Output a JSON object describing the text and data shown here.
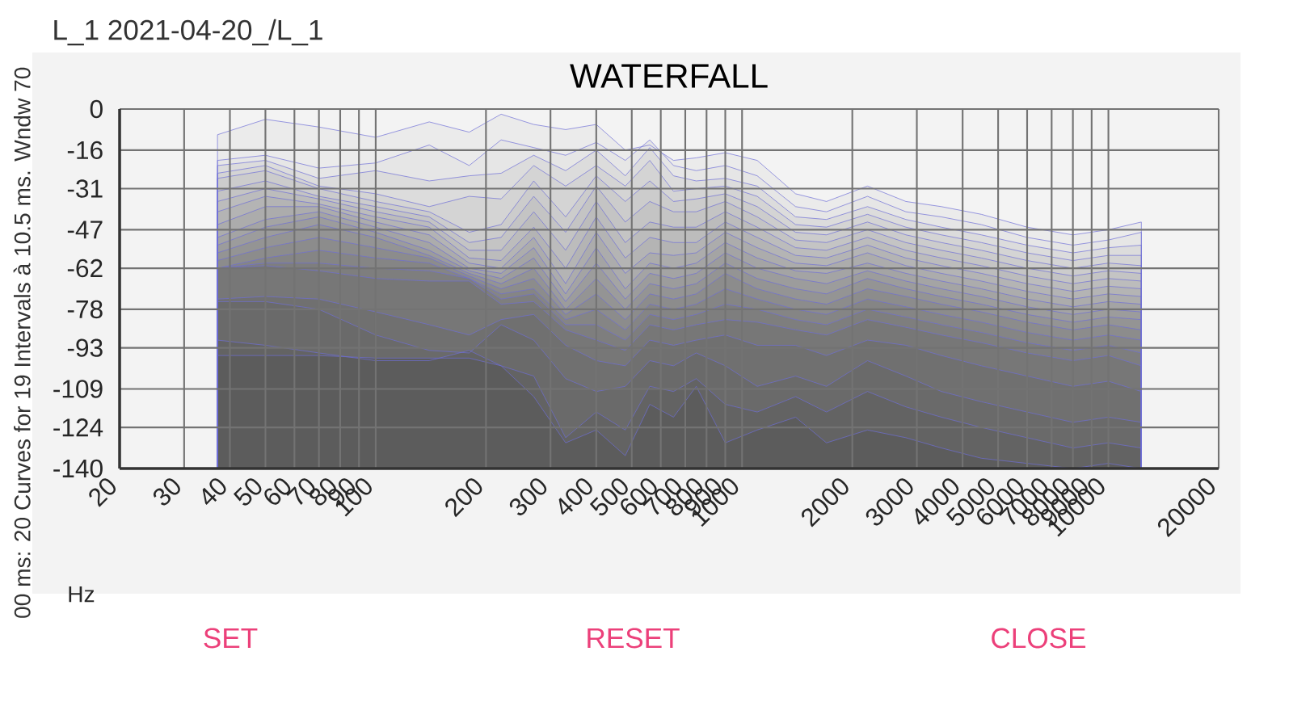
{
  "chart_data": {
    "type": "area",
    "title": "WATERFALL",
    "subtitle": "L_1 2021-04-20_/L_1",
    "ylabel": "00 ms: 20 Curves for 19 Intervals à 10.5 ms. Wndw 70",
    "xlabel": "Hz",
    "annotations": [
      "SET",
      "RESET",
      "CLOSE"
    ],
    "log": "x",
    "grid": true,
    "xlim": [
      20,
      20000
    ],
    "xticks": [
      20,
      30,
      40,
      50,
      60,
      70,
      80,
      90,
      100,
      200,
      300,
      400,
      500,
      600,
      700,
      800,
      900,
      1000,
      2000,
      3000,
      4000,
      5000,
      6000,
      7000,
      8000,
      9000,
      10000,
      20000
    ],
    "ylim": [
      -140,
      0
    ],
    "yticks": [
      0,
      -16,
      -31,
      -47,
      -62,
      -78,
      -93,
      -109,
      -124,
      -140
    ],
    "x": [
      37,
      37,
      50,
      70,
      100,
      140,
      180,
      220,
      270,
      330,
      400,
      480,
      560,
      650,
      750,
      900,
      1100,
      1400,
      1700,
      2200,
      2800,
      3500,
      4500,
      6000,
      8000,
      10000,
      12300,
      12300
    ],
    "series": [
      {
        "color": "#ebebeb",
        "values": [
          -140,
          -10,
          -4,
          -7,
          -11,
          -5,
          -9,
          -2,
          -6,
          -8,
          -6,
          -16,
          -14,
          -20,
          -19,
          -17,
          -20,
          -33,
          -36,
          -30,
          -36,
          -38,
          -41,
          -46,
          -49,
          -47,
          -44,
          -140
        ]
      },
      {
        "color": "#e6e6e6",
        "values": [
          -140,
          -20,
          -18,
          -23,
          -21,
          -14,
          -22,
          -12,
          -15,
          -18,
          -13,
          -20,
          -12,
          -22,
          -24,
          -22,
          -26,
          -38,
          -40,
          -34,
          -40,
          -42,
          -45,
          -50,
          -53,
          -51,
          -48,
          -140
        ]
      },
      {
        "color": "#dcdcdc",
        "values": [
          -140,
          -22,
          -20,
          -27,
          -24,
          -28,
          -26,
          -25,
          -18,
          -24,
          -16,
          -26,
          -15,
          -26,
          -28,
          -27,
          -30,
          -42,
          -43,
          -38,
          -43,
          -46,
          -49,
          -53,
          -56,
          -54,
          -53,
          -140
        ]
      },
      {
        "color": "#d4d4d4",
        "values": [
          -140,
          -25,
          -22,
          -30,
          -33,
          -38,
          -34,
          -35,
          -22,
          -30,
          -22,
          -30,
          -20,
          -32,
          -31,
          -30,
          -34,
          -45,
          -46,
          -41,
          -46,
          -49,
          -52,
          -56,
          -59,
          -57,
          -57,
          -140
        ]
      },
      {
        "color": "#cccccc",
        "values": [
          -140,
          -27,
          -24,
          -31,
          -36,
          -40,
          -48,
          -45,
          -28,
          -42,
          -26,
          -36,
          -28,
          -36,
          -35,
          -33,
          -38,
          -48,
          -49,
          -44,
          -49,
          -52,
          -55,
          -59,
          -62,
          -60,
          -61,
          -140
        ]
      },
      {
        "color": "#c4c4c4",
        "values": [
          -140,
          -32,
          -28,
          -34,
          -38,
          -42,
          -52,
          -50,
          -34,
          -48,
          -30,
          -44,
          -36,
          -40,
          -40,
          -36,
          -42,
          -51,
          -52,
          -47,
          -52,
          -55,
          -58,
          -62,
          -65,
          -63,
          -64,
          -140
        ]
      },
      {
        "color": "#bcbcbc",
        "values": [
          -140,
          -36,
          -31,
          -35,
          -40,
          -44,
          -55,
          -55,
          -40,
          -55,
          -36,
          -52,
          -44,
          -46,
          -46,
          -40,
          -46,
          -54,
          -55,
          -50,
          -55,
          -58,
          -61,
          -65,
          -68,
          -66,
          -67,
          -140
        ]
      },
      {
        "color": "#b4b4b4",
        "values": [
          -140,
          -40,
          -34,
          -37,
          -42,
          -46,
          -58,
          -59,
          -46,
          -62,
          -42,
          -58,
          -50,
          -52,
          -52,
          -44,
          -50,
          -57,
          -58,
          -53,
          -58,
          -61,
          -64,
          -68,
          -71,
          -69,
          -70,
          -140
        ]
      },
      {
        "color": "#acacac",
        "values": [
          -140,
          -45,
          -38,
          -38,
          -44,
          -49,
          -60,
          -62,
          -50,
          -68,
          -48,
          -64,
          -56,
          -57,
          -56,
          -48,
          -54,
          -60,
          -61,
          -56,
          -61,
          -64,
          -67,
          -71,
          -74,
          -72,
          -73,
          -140
        ]
      },
      {
        "color": "#a4a4a4",
        "values": [
          -140,
          -50,
          -43,
          -40,
          -46,
          -52,
          -62,
          -64,
          -54,
          -72,
          -54,
          -70,
          -60,
          -62,
          -60,
          -52,
          -58,
          -63,
          -64,
          -60,
          -64,
          -67,
          -70,
          -74,
          -77,
          -75,
          -76,
          -140
        ]
      },
      {
        "color": "#9c9c9c",
        "values": [
          -140,
          -53,
          -46,
          -42,
          -48,
          -55,
          -63,
          -66,
          -58,
          -75,
          -60,
          -74,
          -64,
          -66,
          -64,
          -56,
          -62,
          -66,
          -68,
          -63,
          -67,
          -70,
          -73,
          -77,
          -80,
          -78,
          -79,
          -140
        ]
      },
      {
        "color": "#949494",
        "values": [
          -140,
          -56,
          -50,
          -45,
          -50,
          -57,
          -64,
          -68,
          -62,
          -78,
          -66,
          -78,
          -68,
          -70,
          -68,
          -60,
          -66,
          -70,
          -72,
          -66,
          -70,
          -73,
          -76,
          -80,
          -83,
          -81,
          -82,
          -140
        ]
      },
      {
        "color": "#8c8c8c",
        "values": [
          -140,
          -59,
          -54,
          -50,
          -54,
          -58,
          -65,
          -70,
          -66,
          -80,
          -72,
          -82,
          -72,
          -74,
          -72,
          -64,
          -70,
          -74,
          -76,
          -70,
          -73,
          -76,
          -79,
          -83,
          -86,
          -84,
          -86,
          -140
        ]
      },
      {
        "color": "#858585",
        "values": [
          -140,
          -62,
          -58,
          -55,
          -58,
          -60,
          -66,
          -72,
          -70,
          -82,
          -78,
          -86,
          -76,
          -78,
          -76,
          -70,
          -74,
          -78,
          -80,
          -74,
          -77,
          -80,
          -83,
          -87,
          -90,
          -88,
          -90,
          -140
        ]
      },
      {
        "color": "#7e7e7e",
        "values": [
          -140,
          -62,
          -60,
          -60,
          -62,
          -63,
          -66,
          -74,
          -72,
          -84,
          -84,
          -90,
          -80,
          -82,
          -80,
          -76,
          -78,
          -82,
          -84,
          -78,
          -81,
          -84,
          -87,
          -91,
          -94,
          -92,
          -95,
          -140
        ]
      },
      {
        "color": "#777777",
        "values": [
          -140,
          -62,
          -61,
          -63,
          -66,
          -67,
          -67,
          -76,
          -75,
          -86,
          -90,
          -94,
          -84,
          -86,
          -84,
          -82,
          -83,
          -86,
          -88,
          -82,
          -85,
          -88,
          -91,
          -95,
          -98,
          -96,
          -100,
          -140
        ]
      },
      {
        "color": "#707070",
        "values": [
          -140,
          -74,
          -73,
          -74,
          -79,
          -84,
          -88,
          -82,
          -80,
          -92,
          -98,
          -100,
          -90,
          -92,
          -90,
          -88,
          -92,
          -92,
          -96,
          -90,
          -92,
          -96,
          -100,
          -104,
          -108,
          -106,
          -110,
          -140
        ]
      },
      {
        "color": "#6a6a6a",
        "values": [
          -140,
          -75,
          -75,
          -78,
          -88,
          -94,
          -95,
          -84,
          -90,
          -105,
          -110,
          -108,
          -98,
          -100,
          -95,
          -100,
          -108,
          -104,
          -108,
          -98,
          -104,
          -110,
          -114,
          -118,
          -122,
          -120,
          -122,
          -140
        ]
      },
      {
        "color": "#636363",
        "values": [
          -140,
          -90,
          -92,
          -95,
          -98,
          -98,
          -94,
          -100,
          -104,
          -128,
          -118,
          -125,
          -108,
          -110,
          -105,
          -115,
          -118,
          -112,
          -118,
          -110,
          -116,
          -120,
          -124,
          -128,
          -132,
          -130,
          -132,
          -140
        ]
      },
      {
        "color": "#5c5c5c",
        "values": [
          -140,
          -96,
          -96,
          -96,
          -97,
          -97,
          -97,
          -100,
          -112,
          -130,
          -125,
          -135,
          -115,
          -120,
          -108,
          -130,
          -125,
          -120,
          -130,
          -125,
          -128,
          -132,
          -136,
          -138,
          -140,
          -138,
          -140,
          -140
        ]
      }
    ]
  }
}
